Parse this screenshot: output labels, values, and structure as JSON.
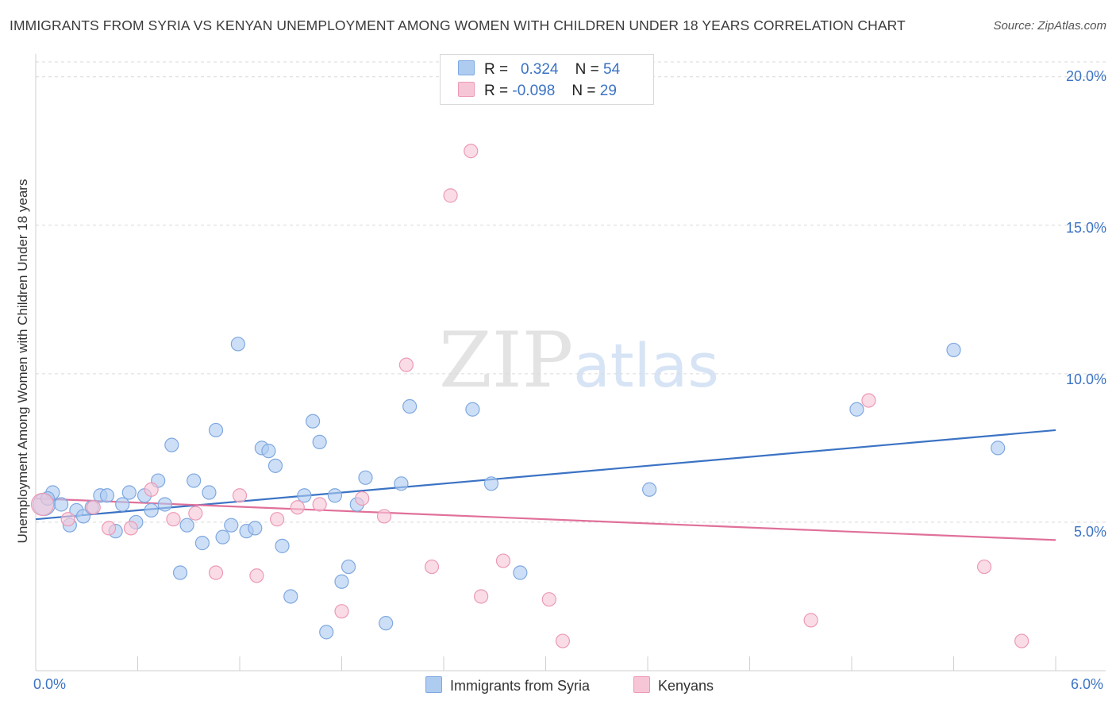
{
  "header": {
    "title": "IMMIGRANTS FROM SYRIA VS KENYAN UNEMPLOYMENT AMONG WOMEN WITH CHILDREN UNDER 18 YEARS CORRELATION CHART",
    "source": "Source: ZipAtlas.com"
  },
  "watermark": {
    "zip": "ZIP",
    "atlas": "atlas"
  },
  "legend": {
    "rows": [
      {
        "r_label": "R =",
        "r_value": "0.324",
        "n_label": "N =",
        "n_value": "54",
        "color": "#aecbf0",
        "border": "#7fa8e0"
      },
      {
        "r_label": "R =",
        "r_value": "-0.098",
        "n_label": "N =",
        "n_value": "29",
        "color": "#f7c6d6",
        "border": "#ec9ab5"
      }
    ]
  },
  "bottom_legend": {
    "items": [
      {
        "label": "Immigrants from Syria",
        "color": "#aecbf0"
      },
      {
        "label": "Kenyans",
        "color": "#f7c6d6"
      }
    ]
  },
  "chart_data": {
    "type": "scatter",
    "title": "IMMIGRANTS FROM SYRIA VS KENYAN UNEMPLOYMENT AMONG WOMEN WITH CHILDREN UNDER 18 YEARS CORRELATION CHART",
    "xlabel": "",
    "ylabel": "Unemployment Among Women with Children Under 18 years",
    "xlim": [
      0,
      6.0
    ],
    "ylim": [
      0,
      20.5
    ],
    "x_tick_labels": [
      "0.0%",
      "6.0%"
    ],
    "y_ticks": [
      5,
      10,
      15,
      20
    ],
    "y_tick_labels": [
      "5.0%",
      "10.0%",
      "15.0%",
      "20.0%"
    ],
    "grid": true,
    "legend_position": "top-center",
    "series": [
      {
        "name": "Immigrants from Syria",
        "color": "#aecbf0",
        "stroke": "#7fa8e0",
        "line_color": "#3b73c4",
        "trend": {
          "x": [
            0,
            6.0
          ],
          "y": [
            5.1,
            8.1
          ]
        },
        "points": [
          {
            "x": 0.05,
            "y": 5.6,
            "big": true
          },
          {
            "x": 0.1,
            "y": 6.0
          },
          {
            "x": 0.15,
            "y": 5.6
          },
          {
            "x": 0.2,
            "y": 4.9
          },
          {
            "x": 0.24,
            "y": 5.4
          },
          {
            "x": 0.28,
            "y": 5.2
          },
          {
            "x": 0.33,
            "y": 5.5
          },
          {
            "x": 0.38,
            "y": 5.9
          },
          {
            "x": 0.42,
            "y": 5.9
          },
          {
            "x": 0.47,
            "y": 4.7
          },
          {
            "x": 0.51,
            "y": 5.6
          },
          {
            "x": 0.55,
            "y": 6.0
          },
          {
            "x": 0.59,
            "y": 5.0
          },
          {
            "x": 0.64,
            "y": 5.9
          },
          {
            "x": 0.68,
            "y": 5.4
          },
          {
            "x": 0.72,
            "y": 6.4
          },
          {
            "x": 0.76,
            "y": 5.6
          },
          {
            "x": 0.8,
            "y": 7.6
          },
          {
            "x": 0.85,
            "y": 3.3
          },
          {
            "x": 0.89,
            "y": 4.9
          },
          {
            "x": 0.93,
            "y": 6.4
          },
          {
            "x": 0.98,
            "y": 4.3
          },
          {
            "x": 1.02,
            "y": 6.0
          },
          {
            "x": 1.06,
            "y": 8.1
          },
          {
            "x": 1.1,
            "y": 4.5
          },
          {
            "x": 1.15,
            "y": 4.9
          },
          {
            "x": 1.19,
            "y": 11.0
          },
          {
            "x": 1.24,
            "y": 4.7
          },
          {
            "x": 1.29,
            "y": 4.8
          },
          {
            "x": 1.33,
            "y": 7.5
          },
          {
            "x": 1.37,
            "y": 7.4
          },
          {
            "x": 1.41,
            "y": 6.9
          },
          {
            "x": 1.45,
            "y": 4.2
          },
          {
            "x": 1.5,
            "y": 2.5
          },
          {
            "x": 1.58,
            "y": 5.9
          },
          {
            "x": 1.63,
            "y": 8.4
          },
          {
            "x": 1.67,
            "y": 7.7
          },
          {
            "x": 1.71,
            "y": 1.3
          },
          {
            "x": 1.76,
            "y": 5.9
          },
          {
            "x": 1.8,
            "y": 3.0
          },
          {
            "x": 1.84,
            "y": 3.5
          },
          {
            "x": 1.89,
            "y": 5.6
          },
          {
            "x": 1.94,
            "y": 6.5
          },
          {
            "x": 2.06,
            "y": 1.6
          },
          {
            "x": 2.15,
            "y": 6.3
          },
          {
            "x": 2.2,
            "y": 8.9
          },
          {
            "x": 2.57,
            "y": 8.8
          },
          {
            "x": 2.68,
            "y": 6.3
          },
          {
            "x": 2.85,
            "y": 3.3
          },
          {
            "x": 3.61,
            "y": 6.1
          },
          {
            "x": 5.4,
            "y": 10.8
          },
          {
            "x": 5.66,
            "y": 7.5
          },
          {
            "x": 4.83,
            "y": 8.8
          },
          {
            "x": 0.07,
            "y": 5.8
          }
        ]
      },
      {
        "name": "Kenyans",
        "color": "#f7c6d6",
        "stroke": "#ec9ab5",
        "line_color": "#e0709a",
        "trend": {
          "x": [
            0,
            6.0
          ],
          "y": [
            5.8,
            4.4
          ]
        },
        "points": [
          {
            "x": 0.04,
            "y": 5.6,
            "big": true
          },
          {
            "x": 0.19,
            "y": 5.1
          },
          {
            "x": 0.34,
            "y": 5.5
          },
          {
            "x": 0.43,
            "y": 4.8
          },
          {
            "x": 0.56,
            "y": 4.8
          },
          {
            "x": 0.68,
            "y": 6.1
          },
          {
            "x": 0.81,
            "y": 5.1
          },
          {
            "x": 0.94,
            "y": 5.3
          },
          {
            "x": 1.06,
            "y": 3.3
          },
          {
            "x": 1.2,
            "y": 5.9
          },
          {
            "x": 1.3,
            "y": 3.2
          },
          {
            "x": 1.42,
            "y": 5.1
          },
          {
            "x": 1.54,
            "y": 5.5
          },
          {
            "x": 1.67,
            "y": 5.6
          },
          {
            "x": 1.8,
            "y": 2.0
          },
          {
            "x": 1.92,
            "y": 5.8
          },
          {
            "x": 2.05,
            "y": 5.2
          },
          {
            "x": 2.18,
            "y": 10.3
          },
          {
            "x": 2.33,
            "y": 3.5
          },
          {
            "x": 2.44,
            "y": 16.0
          },
          {
            "x": 2.56,
            "y": 17.5
          },
          {
            "x": 2.62,
            "y": 2.5
          },
          {
            "x": 2.75,
            "y": 3.7
          },
          {
            "x": 3.02,
            "y": 2.4
          },
          {
            "x": 3.1,
            "y": 1.0
          },
          {
            "x": 4.56,
            "y": 1.7
          },
          {
            "x": 4.9,
            "y": 9.1
          },
          {
            "x": 5.58,
            "y": 3.5
          },
          {
            "x": 5.8,
            "y": 1.0
          }
        ]
      }
    ]
  }
}
